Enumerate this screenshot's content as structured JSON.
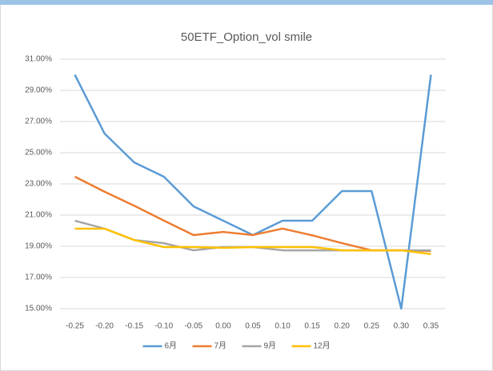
{
  "chart_data": {
    "type": "line",
    "title": "50ETF_Option_vol smile",
    "categories": [
      "-0.25",
      "-0.20",
      "-0.15",
      "-0.10",
      "-0.05",
      "0.00",
      "0.05",
      "0.10",
      "0.15",
      "0.20",
      "0.25",
      "0.30",
      "0.35"
    ],
    "series": [
      {
        "name": "6月",
        "color": "#5b9bd5",
        "values": [
          30.0,
          26.23,
          24.38,
          23.46,
          21.56,
          20.64,
          19.72,
          20.64,
          20.64,
          22.54,
          22.54,
          15.0,
          30.0
        ]
      },
      {
        "name": "7月",
        "color": "#ed7d31",
        "values": [
          23.46,
          22.5,
          21.6,
          20.65,
          19.72,
          19.92,
          19.72,
          20.13,
          19.7,
          19.2,
          18.74,
          18.74,
          18.7
        ]
      },
      {
        "name": "9月",
        "color": "#a5a5a5",
        "values": [
          20.64,
          20.13,
          19.4,
          19.2,
          18.74,
          18.95,
          18.95,
          18.74,
          18.74,
          18.74,
          18.74,
          18.74,
          18.74
        ]
      },
      {
        "name": "12月",
        "color": "#ffc000",
        "values": [
          20.13,
          20.13,
          19.4,
          18.95,
          18.95,
          18.9,
          18.95,
          18.95,
          18.95,
          18.74,
          18.74,
          18.74,
          18.5
        ]
      }
    ],
    "ylim": [
      15,
      31
    ],
    "yticks": [
      {
        "value": 15,
        "label": "15.00%"
      },
      {
        "value": 17,
        "label": "17.00%"
      },
      {
        "value": 19,
        "label": "19.00%"
      },
      {
        "value": 21,
        "label": "21.00%"
      },
      {
        "value": 23,
        "label": "23.00%"
      },
      {
        "value": 25,
        "label": "25.00%"
      },
      {
        "value": 27,
        "label": "27.00%"
      },
      {
        "value": 29,
        "label": "29.00%"
      },
      {
        "value": 31,
        "label": "31.00%"
      }
    ],
    "grid": true,
    "legend": "bottom"
  }
}
